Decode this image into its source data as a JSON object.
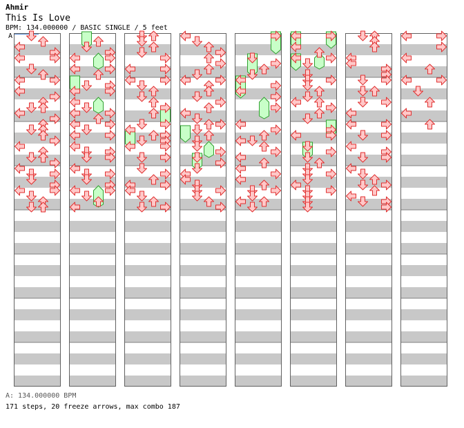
{
  "header": {
    "artist": "Ahmir",
    "title": "This Is Love",
    "info": "BPM: 134.000000 / BASIC SINGLE / 5 feet",
    "bpm_marker": "A"
  },
  "footer": {
    "bpm_legend": "A: 134.000000 BPM",
    "stats": "171 steps, 20 freeze arrows, max combo 187"
  },
  "chart_data": {
    "type": "step-chart",
    "lanes": [
      "left",
      "down",
      "up",
      "right"
    ],
    "beats_per_measure": 4,
    "rows_per_measure": 8,
    "measures_per_column": 8,
    "colors": {
      "arrow_fill": "#ffc8c8",
      "arrow_stroke": "#e03030",
      "freeze_fill": "#c8ffc8",
      "freeze_stroke": "#30a030",
      "band": "#c8c8c8"
    },
    "columns": [
      {
        "arrows": [
          [
            0,
            1
          ],
          [
            1,
            2
          ],
          [
            2,
            0
          ],
          [
            3,
            3
          ],
          [
            4,
            0
          ],
          [
            4,
            3
          ],
          [
            6,
            1
          ],
          [
            7,
            2
          ],
          [
            8,
            0
          ],
          [
            8,
            3
          ],
          [
            10,
            0
          ],
          [
            11,
            3
          ],
          [
            12,
            2
          ],
          [
            13,
            1
          ],
          [
            13,
            2
          ],
          [
            14,
            0
          ],
          [
            15,
            3
          ],
          [
            16,
            2
          ],
          [
            17,
            1
          ],
          [
            17,
            2
          ],
          [
            18,
            2
          ],
          [
            19,
            3
          ],
          [
            20,
            0
          ],
          [
            21,
            2
          ],
          [
            22,
            1
          ],
          [
            22,
            2
          ],
          [
            23,
            3
          ],
          [
            24,
            0
          ],
          [
            25,
            1
          ],
          [
            25,
            3
          ],
          [
            26,
            1
          ],
          [
            27,
            3
          ],
          [
            28,
            0
          ],
          [
            28,
            3
          ],
          [
            29,
            1
          ],
          [
            30,
            2
          ],
          [
            31,
            1
          ],
          [
            31,
            2
          ]
        ],
        "freezes": []
      },
      {
        "arrows": [
          [
            1,
            2
          ],
          [
            2,
            1
          ],
          [
            3,
            3
          ],
          [
            4,
            0
          ],
          [
            4,
            3
          ],
          [
            6,
            0
          ],
          [
            6,
            3
          ],
          [
            7,
            2
          ],
          [
            9,
            1
          ],
          [
            9,
            3
          ],
          [
            10,
            0
          ],
          [
            10,
            3
          ],
          [
            12,
            0
          ],
          [
            13,
            1
          ],
          [
            14,
            0
          ],
          [
            14,
            3
          ],
          [
            15,
            2
          ],
          [
            16,
            0
          ],
          [
            16,
            3
          ],
          [
            17,
            1
          ],
          [
            18,
            0
          ],
          [
            18,
            3
          ],
          [
            20,
            0
          ],
          [
            21,
            1
          ],
          [
            21,
            3
          ],
          [
            22,
            1
          ],
          [
            22,
            3
          ],
          [
            24,
            0
          ],
          [
            25,
            1
          ],
          [
            25,
            3
          ],
          [
            26,
            1
          ],
          [
            27,
            3
          ],
          [
            28,
            0
          ],
          [
            28,
            3
          ],
          [
            29,
            1
          ],
          [
            30,
            2
          ],
          [
            31,
            0
          ]
        ],
        "freezes": [
          [
            0,
            1,
            1.5
          ],
          [
            4,
            2,
            5.5
          ],
          [
            8,
            0,
            9.5
          ],
          [
            12,
            2,
            13.5
          ],
          [
            28,
            2,
            30.5
          ]
        ]
      },
      {
        "arrows": [
          [
            0,
            1
          ],
          [
            0,
            2
          ],
          [
            1,
            1
          ],
          [
            2,
            2
          ],
          [
            3,
            1
          ],
          [
            4,
            3
          ],
          [
            6,
            0
          ],
          [
            6,
            3
          ],
          [
            8,
            0
          ],
          [
            8,
            3
          ],
          [
            9,
            1
          ],
          [
            10,
            2
          ],
          [
            11,
            1
          ],
          [
            12,
            2
          ],
          [
            13,
            3
          ],
          [
            14,
            2
          ],
          [
            16,
            1
          ],
          [
            16,
            3
          ],
          [
            17,
            0
          ],
          [
            18,
            2
          ],
          [
            18,
            3
          ],
          [
            19,
            1
          ],
          [
            19,
            3
          ],
          [
            20,
            0
          ],
          [
            20,
            3
          ],
          [
            22,
            1
          ],
          [
            22,
            3
          ],
          [
            24,
            1
          ],
          [
            25,
            3
          ],
          [
            26,
            2
          ],
          [
            27,
            0
          ],
          [
            27,
            3
          ],
          [
            28,
            0
          ],
          [
            29,
            1
          ],
          [
            30,
            2
          ],
          [
            31,
            1
          ],
          [
            31,
            3
          ]
        ],
        "freezes": [
          [
            14,
            3,
            15.5
          ],
          [
            18,
            0,
            19.5
          ]
        ]
      },
      {
        "arrows": [
          [
            0,
            0
          ],
          [
            1,
            1
          ],
          [
            2,
            2
          ],
          [
            3,
            3
          ],
          [
            4,
            2
          ],
          [
            5,
            3
          ],
          [
            6,
            2
          ],
          [
            7,
            1
          ],
          [
            8,
            0
          ],
          [
            8,
            3
          ],
          [
            9,
            2
          ],
          [
            10,
            2
          ],
          [
            11,
            1
          ],
          [
            12,
            3
          ],
          [
            13,
            2
          ],
          [
            14,
            0
          ],
          [
            15,
            1
          ],
          [
            16,
            2
          ],
          [
            16,
            3
          ],
          [
            17,
            1
          ],
          [
            18,
            2
          ],
          [
            19,
            1
          ],
          [
            20,
            1
          ],
          [
            21,
            3
          ],
          [
            22,
            1
          ],
          [
            23,
            3
          ],
          [
            24,
            1
          ],
          [
            25,
            0
          ],
          [
            26,
            0
          ],
          [
            27,
            1
          ],
          [
            28,
            1
          ],
          [
            28,
            3
          ],
          [
            29,
            1
          ],
          [
            30,
            2
          ],
          [
            31,
            3
          ]
        ],
        "freezes": [
          [
            17,
            0,
            18.5
          ],
          [
            20,
            2,
            21.5
          ],
          [
            22,
            1,
            23.5
          ]
        ]
      },
      {
        "arrows": [
          [
            0,
            3
          ],
          [
            4,
            1
          ],
          [
            5,
            3
          ],
          [
            6,
            2
          ],
          [
            7,
            1
          ],
          [
            8,
            0
          ],
          [
            9,
            3
          ],
          [
            10,
            0
          ],
          [
            11,
            3
          ],
          [
            13,
            3
          ],
          [
            16,
            0
          ],
          [
            17,
            3
          ],
          [
            18,
            2
          ],
          [
            19,
            0
          ],
          [
            19,
            1
          ],
          [
            20,
            2
          ],
          [
            21,
            3
          ],
          [
            22,
            0
          ],
          [
            23,
            2
          ],
          [
            24,
            0
          ],
          [
            25,
            3
          ],
          [
            26,
            0
          ],
          [
            27,
            2
          ],
          [
            28,
            1
          ],
          [
            28,
            3
          ],
          [
            29,
            1
          ],
          [
            30,
            0
          ],
          [
            30,
            2
          ],
          [
            31,
            1
          ]
        ],
        "freezes": [
          [
            0,
            3,
            2.5
          ],
          [
            4,
            1,
            6.5
          ],
          [
            8,
            0,
            10.5
          ],
          [
            12,
            2,
            14.5
          ]
        ]
      },
      {
        "arrows": [
          [
            0,
            0
          ],
          [
            0,
            3
          ],
          [
            2,
            0
          ],
          [
            3,
            2
          ],
          [
            4,
            0
          ],
          [
            4,
            3
          ],
          [
            5,
            1
          ],
          [
            7,
            1
          ],
          [
            8,
            1
          ],
          [
            8,
            3
          ],
          [
            9,
            1
          ],
          [
            10,
            2
          ],
          [
            11,
            1
          ],
          [
            12,
            0
          ],
          [
            12,
            2
          ],
          [
            13,
            3
          ],
          [
            14,
            2
          ],
          [
            15,
            1
          ],
          [
            17,
            3
          ],
          [
            18,
            0
          ],
          [
            18,
            3
          ],
          [
            20,
            1
          ],
          [
            21,
            3
          ],
          [
            22,
            1
          ],
          [
            23,
            2
          ],
          [
            24,
            1
          ],
          [
            25,
            1
          ],
          [
            25,
            3
          ],
          [
            26,
            1
          ],
          [
            27,
            0
          ],
          [
            28,
            1
          ],
          [
            28,
            3
          ],
          [
            29,
            1
          ],
          [
            30,
            1
          ],
          [
            31,
            1
          ]
        ],
        "freezes": [
          [
            0,
            0,
            1.5
          ],
          [
            0,
            3,
            1.5
          ],
          [
            4,
            0,
            5.5
          ],
          [
            4,
            2,
            5.5
          ],
          [
            16,
            3,
            17.5
          ],
          [
            20,
            1,
            21.5
          ]
        ]
      },
      {
        "arrows": [
          [
            0,
            1
          ],
          [
            0,
            2
          ],
          [
            1,
            2
          ],
          [
            2,
            2
          ],
          [
            4,
            0
          ],
          [
            5,
            0
          ],
          [
            6,
            3
          ],
          [
            7,
            3
          ],
          [
            8,
            1
          ],
          [
            8,
            3
          ],
          [
            10,
            1
          ],
          [
            10,
            2
          ],
          [
            12,
            1
          ],
          [
            12,
            3
          ],
          [
            14,
            0
          ],
          [
            16,
            0
          ],
          [
            16,
            3
          ],
          [
            18,
            1
          ],
          [
            18,
            3
          ],
          [
            20,
            0
          ],
          [
            21,
            3
          ],
          [
            22,
            1
          ],
          [
            22,
            3
          ],
          [
            24,
            0
          ],
          [
            25,
            1
          ],
          [
            26,
            2
          ],
          [
            27,
            1
          ],
          [
            27,
            3
          ],
          [
            28,
            2
          ],
          [
            29,
            0
          ],
          [
            30,
            1
          ],
          [
            30,
            3
          ],
          [
            31,
            3
          ]
        ],
        "freezes": []
      },
      {
        "arrows": [
          [
            0,
            0
          ],
          [
            0,
            3
          ],
          [
            2,
            3
          ],
          [
            4,
            0
          ],
          [
            6,
            2
          ],
          [
            8,
            0
          ],
          [
            8,
            3
          ],
          [
            10,
            1
          ],
          [
            12,
            2
          ],
          [
            14,
            0
          ],
          [
            16,
            2
          ]
        ],
        "freezes": []
      }
    ]
  }
}
